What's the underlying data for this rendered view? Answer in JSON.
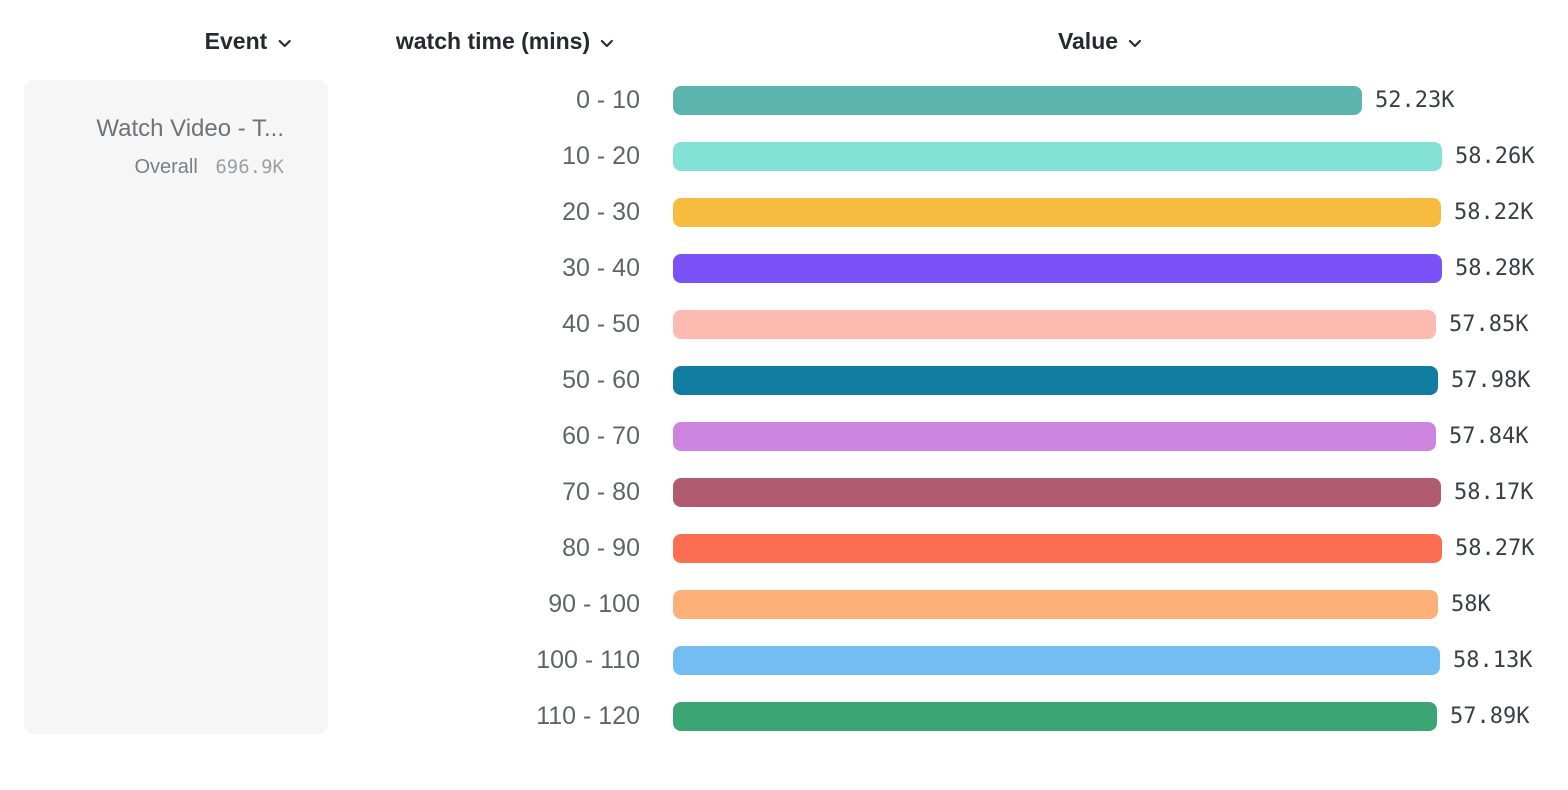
{
  "headers": {
    "event": {
      "label": "Event"
    },
    "breakdown": {
      "label": "watch time (mins)"
    },
    "value": {
      "label": "Value"
    }
  },
  "event_card": {
    "title": "Watch Video - T...",
    "overall_label": "Overall",
    "overall_value": "696.9K"
  },
  "chart_data": {
    "type": "bar",
    "orientation": "horizontal",
    "title": "",
    "category_axis_label": "watch time (mins)",
    "value_axis_label": "Value",
    "legend": false,
    "grid": false,
    "value_range": [
      0,
      58280
    ],
    "categories": [
      "0 - 10",
      "10 - 20",
      "20 - 30",
      "30 - 40",
      "40 - 50",
      "50 - 60",
      "60 - 70",
      "70 - 80",
      "80 - 90",
      "90 - 100",
      "100 - 110",
      "110 - 120"
    ],
    "values": [
      52230,
      58260,
      58220,
      58280,
      57850,
      57980,
      57840,
      58170,
      58270,
      58000,
      58130,
      57890
    ],
    "value_labels": [
      "52.23K",
      "58.26K",
      "58.22K",
      "58.28K",
      "57.85K",
      "57.98K",
      "57.84K",
      "58.17K",
      "58.27K",
      "58K",
      "58.13K",
      "57.89K"
    ],
    "bar_colors": [
      "#5bb5ae",
      "#83e1d5",
      "#f7bc3f",
      "#7b52f7",
      "#fcbab1",
      "#107da1",
      "#cc84de",
      "#b15b70",
      "#fc6e52",
      "#fdb078",
      "#73bdf3",
      "#3ba573"
    ]
  },
  "icons": {
    "chevron_down": "chevron-down-icon"
  },
  "colors": {
    "background": "#ffffff",
    "card_background": "#f6f6f6",
    "header_text": "#26292e",
    "category_text": "#606469",
    "value_text": "#3b3f45"
  }
}
